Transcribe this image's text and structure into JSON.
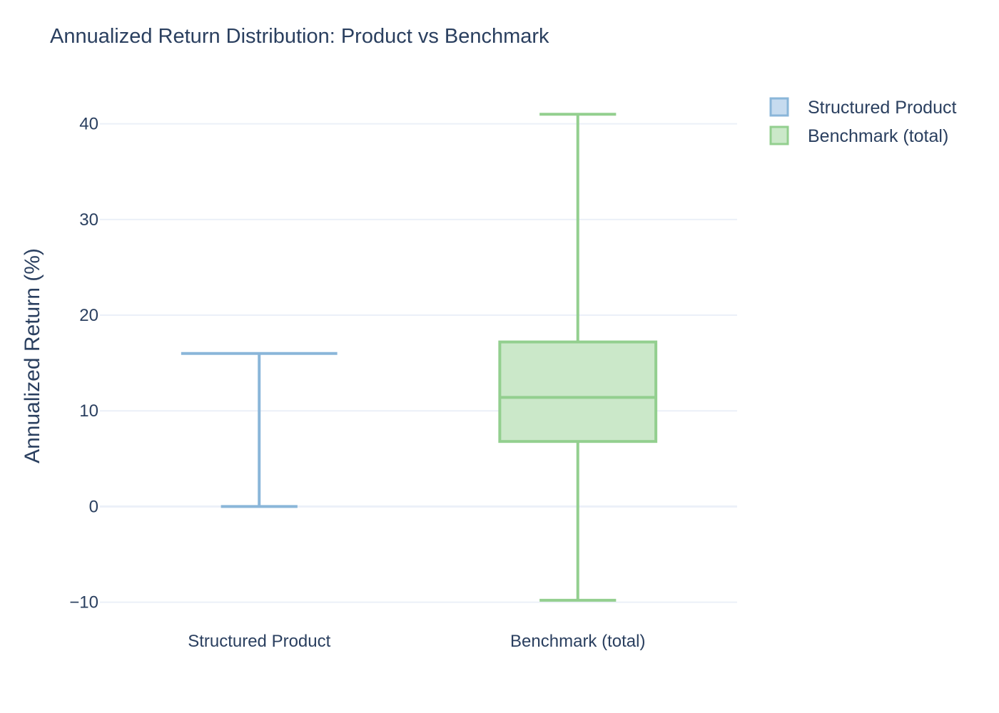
{
  "chart_data": {
    "type": "box",
    "title": "Annualized Return Distribution: Product vs Benchmark",
    "xlabel": "",
    "ylabel": "Annualized Return (%)",
    "ylim": [
      -11,
      44
    ],
    "yticks": [
      -10,
      0,
      10,
      20,
      30,
      40
    ],
    "ytick_labels": [
      "−10",
      "0",
      "10",
      "20",
      "30",
      "40"
    ],
    "grid": true,
    "legend_position": "top-right",
    "categories": [
      "Structured Product",
      "Benchmark (total)"
    ],
    "series": [
      {
        "name": "Structured Product",
        "color": "#8ab6d9",
        "fill": "#c6dbef",
        "min": 0,
        "q1": 0,
        "median": 0,
        "q3": 0,
        "max": 16
      },
      {
        "name": "Benchmark (total)",
        "color": "#93cf8f",
        "fill": "#cbe8c9",
        "min": -9.8,
        "q1": 6.8,
        "median": 11.4,
        "q3": 17.2,
        "max": 41
      }
    ]
  }
}
